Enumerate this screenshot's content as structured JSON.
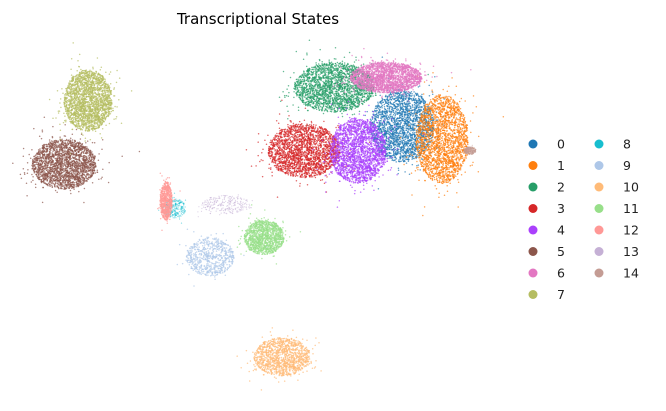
{
  "chart_data": {
    "type": "scatter",
    "title": "Transcriptional States",
    "xlabel": "",
    "ylabel": "",
    "axes_visible": false,
    "grid": false,
    "legend": {
      "placement": "right",
      "columns": 2,
      "entries": [
        {
          "label": "0",
          "color": "#1f77b4"
        },
        {
          "label": "1",
          "color": "#ff7f0e"
        },
        {
          "label": "2",
          "color": "#279e68"
        },
        {
          "label": "3",
          "color": "#d62728"
        },
        {
          "label": "4",
          "color": "#aa40fc"
        },
        {
          "label": "5",
          "color": "#8c564b"
        },
        {
          "label": "6",
          "color": "#e377c2"
        },
        {
          "label": "7",
          "color": "#b5bd61"
        },
        {
          "label": "8",
          "color": "#17becf"
        },
        {
          "label": "9",
          "color": "#aec7e8"
        },
        {
          "label": "10",
          "color": "#ffbb78"
        },
        {
          "label": "11",
          "color": "#98df8a"
        },
        {
          "label": "12",
          "color": "#ff9896"
        },
        {
          "label": "13",
          "color": "#c5b0d5"
        },
        {
          "label": "14",
          "color": "#c49c94"
        }
      ]
    },
    "series": [
      {
        "name": "0",
        "color": "#1f77b4",
        "regions": [
          {
            "center": [
              8.2,
              2.3
            ],
            "radius": [
              1.6,
              1.9
            ],
            "density": "high"
          }
        ]
      },
      {
        "name": "1",
        "color": "#ff7f0e",
        "regions": [
          {
            "center": [
              10.2,
              1.6
            ],
            "radius": [
              1.3,
              2.3
            ],
            "density": "high"
          }
        ]
      },
      {
        "name": "2",
        "color": "#279e68",
        "regions": [
          {
            "center": [
              4.8,
              4.3
            ],
            "radius": [
              2.0,
              1.3
            ],
            "density": "high"
          }
        ]
      },
      {
        "name": "3",
        "color": "#d62728",
        "regions": [
          {
            "center": [
              3.3,
              1.0
            ],
            "radius": [
              1.8,
              1.4
            ],
            "density": "high"
          }
        ]
      },
      {
        "name": "4",
        "color": "#aa40fc",
        "regions": [
          {
            "center": [
              6.0,
              1.0
            ],
            "radius": [
              1.4,
              1.7
            ],
            "density": "high"
          }
        ]
      },
      {
        "name": "5",
        "color": "#8c564b",
        "regions": [
          {
            "center": [
              -8.7,
              0.3
            ],
            "radius": [
              1.6,
              1.3
            ],
            "density": "high"
          }
        ]
      },
      {
        "name": "6",
        "color": "#e377c2",
        "regions": [
          {
            "center": [
              7.4,
              4.8
            ],
            "radius": [
              1.8,
              0.8
            ],
            "density": "high"
          }
        ]
      },
      {
        "name": "7",
        "color": "#b5bd61",
        "regions": [
          {
            "center": [
              -7.5,
              3.6
            ],
            "radius": [
              1.2,
              1.6
            ],
            "density": "high"
          }
        ]
      },
      {
        "name": "8",
        "color": "#17becf",
        "regions": [
          {
            "center": [
              -3.2,
              -2.0
            ],
            "radius": [
              0.6,
              0.5
            ],
            "density": "sparse"
          }
        ]
      },
      {
        "name": "9",
        "color": "#aec7e8",
        "regions": [
          {
            "center": [
              -1.4,
              -4.5
            ],
            "radius": [
              1.2,
              1.0
            ],
            "density": "low"
          }
        ]
      },
      {
        "name": "10",
        "color": "#ffbb78",
        "regions": [
          {
            "center": [
              2.2,
              -9.7
            ],
            "radius": [
              1.4,
              1.0
            ],
            "density": "medium"
          }
        ]
      },
      {
        "name": "11",
        "color": "#98df8a",
        "regions": [
          {
            "center": [
              1.3,
              -3.5
            ],
            "radius": [
              1.0,
              0.9
            ],
            "density": "medium"
          }
        ]
      },
      {
        "name": "12",
        "color": "#ff9896",
        "regions": [
          {
            "center": [
              -3.6,
              -1.6
            ],
            "radius": [
              0.3,
              1.0
            ],
            "density": "low"
          }
        ]
      },
      {
        "name": "13",
        "color": "#c5b0d5",
        "regions": [
          {
            "center": [
              -0.6,
              -1.8
            ],
            "radius": [
              1.2,
              0.5
            ],
            "density": "sparse"
          }
        ]
      },
      {
        "name": "14",
        "color": "#c49c94",
        "regions": [
          {
            "center": [
              11.6,
              1.0
            ],
            "radius": [
              0.3,
              0.2
            ],
            "density": "sparse"
          }
        ]
      }
    ],
    "xlim": [
      -11,
      13
    ],
    "ylim": [
      -12,
      7
    ]
  }
}
